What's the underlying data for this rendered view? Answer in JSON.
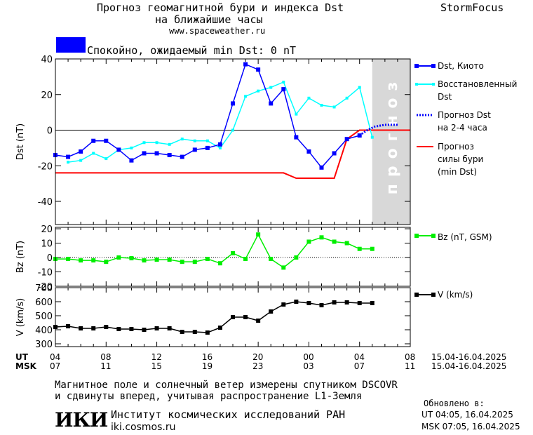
{
  "header": {
    "title_line1": "Прогноз геомагнитной бури и индекса Dst",
    "title_line2": "на ближайшие часы",
    "website": "www.spaceweather.ru",
    "brand": "StormFocus"
  },
  "status": {
    "text": "Спокойно, ожидаемый min Dst: 0 nT",
    "color": "#0000ff"
  },
  "legend": {
    "dst": "Dst, Киото",
    "restored_1": "Восстановленный",
    "restored_2": "Dst",
    "forecast_1": "Прогноз Dst",
    "forecast_2": "на 2-4 часа",
    "storm_1": "Прогноз",
    "storm_2": "силы бури",
    "storm_3": "(min Dst)",
    "bz": "Bz (nT, GSM)",
    "v": "V (km/s)"
  },
  "axis_rows": {
    "ut_label": "UT",
    "msk_label": "MSK",
    "ut_ticks": [
      "04",
      "08",
      "12",
      "16",
      "20",
      "00",
      "04",
      "08"
    ],
    "msk_ticks": [
      "07",
      "11",
      "15",
      "19",
      "23",
      "03",
      "07",
      "11"
    ],
    "ut_range": "15.04-16.04.2025",
    "msk_range": "15.04-16.04.2025"
  },
  "footer": {
    "line1": "Магнитное поле и солнечный ветер измерены спутником DSCOVR",
    "line2": "и сдвинуты вперед, учитывая распространение L1-Земля",
    "logo": "ИКИ",
    "institute": "Институт космических исследований РАН",
    "institute_url": "iki.cosmos.ru",
    "updated_label": "Обновлено в:",
    "updated_ut": "UT  04:05, 16.04.2025",
    "updated_msk": "MSK 07:05, 16.04.2025"
  },
  "chart_data": [
    {
      "type": "line",
      "ylabel": "Dst (nT)",
      "ylim": [
        -53,
        40
      ],
      "yticks": [
        40,
        20,
        0,
        -20,
        -40
      ],
      "xlim": [
        0,
        28
      ],
      "forecast_band_label": "прогноз",
      "forecast_band": [
        25,
        28
      ],
      "colors": {
        "dst": "#0000ff",
        "restored": "#00ffff",
        "forecast": "#0000ff",
        "storm": "#ff0000",
        "band": "#d8d8d8"
      },
      "series": [
        {
          "name": "Dst, Киото",
          "x": [
            0,
            1,
            2,
            3,
            4,
            5,
            6,
            7,
            8,
            9,
            10,
            11,
            12,
            13,
            14,
            15,
            16,
            17,
            18,
            19,
            20,
            21,
            22,
            23,
            24
          ],
          "values": [
            -14,
            -15,
            -12,
            -6,
            -6,
            -11,
            -17,
            -13,
            -13,
            -14,
            -15,
            -11,
            -10,
            -8,
            15,
            37,
            34,
            15,
            23,
            -4,
            -12,
            -21,
            -13,
            -5,
            -3
          ]
        },
        {
          "name": "Восстановленный Dst",
          "x": [
            1,
            2,
            3,
            4,
            5,
            6,
            7,
            8,
            9,
            10,
            11,
            12,
            13,
            14,
            15,
            16,
            17,
            18,
            19,
            20,
            21,
            22,
            23,
            24,
            25
          ],
          "values": [
            -18,
            -17,
            -13,
            -16,
            -11,
            -10,
            -7,
            -7,
            -8,
            -5,
            -6,
            -6,
            -10,
            0,
            19,
            22,
            24,
            27,
            9,
            18,
            14,
            13,
            18,
            24,
            -4
          ]
        },
        {
          "name": "Прогноз Dst на 2-4 часа",
          "x": [
            24,
            24.6,
            25.2,
            26,
            27
          ],
          "values": [
            -3,
            0,
            2,
            3,
            3
          ]
        },
        {
          "name": "Прогноз силы бури (min Dst)",
          "x": [
            0,
            18,
            19,
            22,
            23,
            24,
            25,
            28
          ],
          "values": [
            -24,
            -24,
            -27,
            -27,
            -5,
            0,
            0,
            0
          ]
        }
      ]
    },
    {
      "type": "line",
      "ylabel": "Bz (nT)",
      "ylim": [
        -20,
        21
      ],
      "yticks": [
        20,
        10,
        0,
        -10,
        -20
      ],
      "xlim": [
        0,
        28
      ],
      "color": "#00ee00",
      "series": [
        {
          "name": "Bz (nT, GSM)",
          "x": [
            0,
            1,
            2,
            3,
            4,
            5,
            6,
            7,
            8,
            9,
            10,
            11,
            12,
            13,
            14,
            15,
            16,
            17,
            18,
            19,
            20,
            21,
            22,
            23,
            24,
            25
          ],
          "values": [
            -1,
            -1,
            -2,
            -2,
            -3,
            0,
            -0.5,
            -2,
            -1.5,
            -1.5,
            -3,
            -3,
            -1,
            -4,
            3,
            -1,
            16,
            -1,
            -7,
            0,
            11,
            14,
            11,
            10,
            6,
            6
          ]
        }
      ]
    },
    {
      "type": "line",
      "ylabel": "V (km/s)",
      "ylim": [
        280,
        700
      ],
      "yticks": [
        700,
        600,
        500,
        400,
        300
      ],
      "xlim": [
        0,
        28
      ],
      "color": "#000000",
      "series": [
        {
          "name": "V (km/s)",
          "x": [
            0,
            1,
            2,
            3,
            4,
            5,
            6,
            7,
            8,
            9,
            10,
            11,
            12,
            13,
            14,
            15,
            16,
            17,
            18,
            19,
            20,
            21,
            22,
            23,
            24,
            25
          ],
          "values": [
            420,
            425,
            410,
            410,
            420,
            405,
            405,
            400,
            410,
            410,
            385,
            385,
            380,
            415,
            490,
            490,
            465,
            530,
            580,
            600,
            590,
            575,
            595,
            595,
            590,
            590
          ]
        }
      ]
    }
  ]
}
